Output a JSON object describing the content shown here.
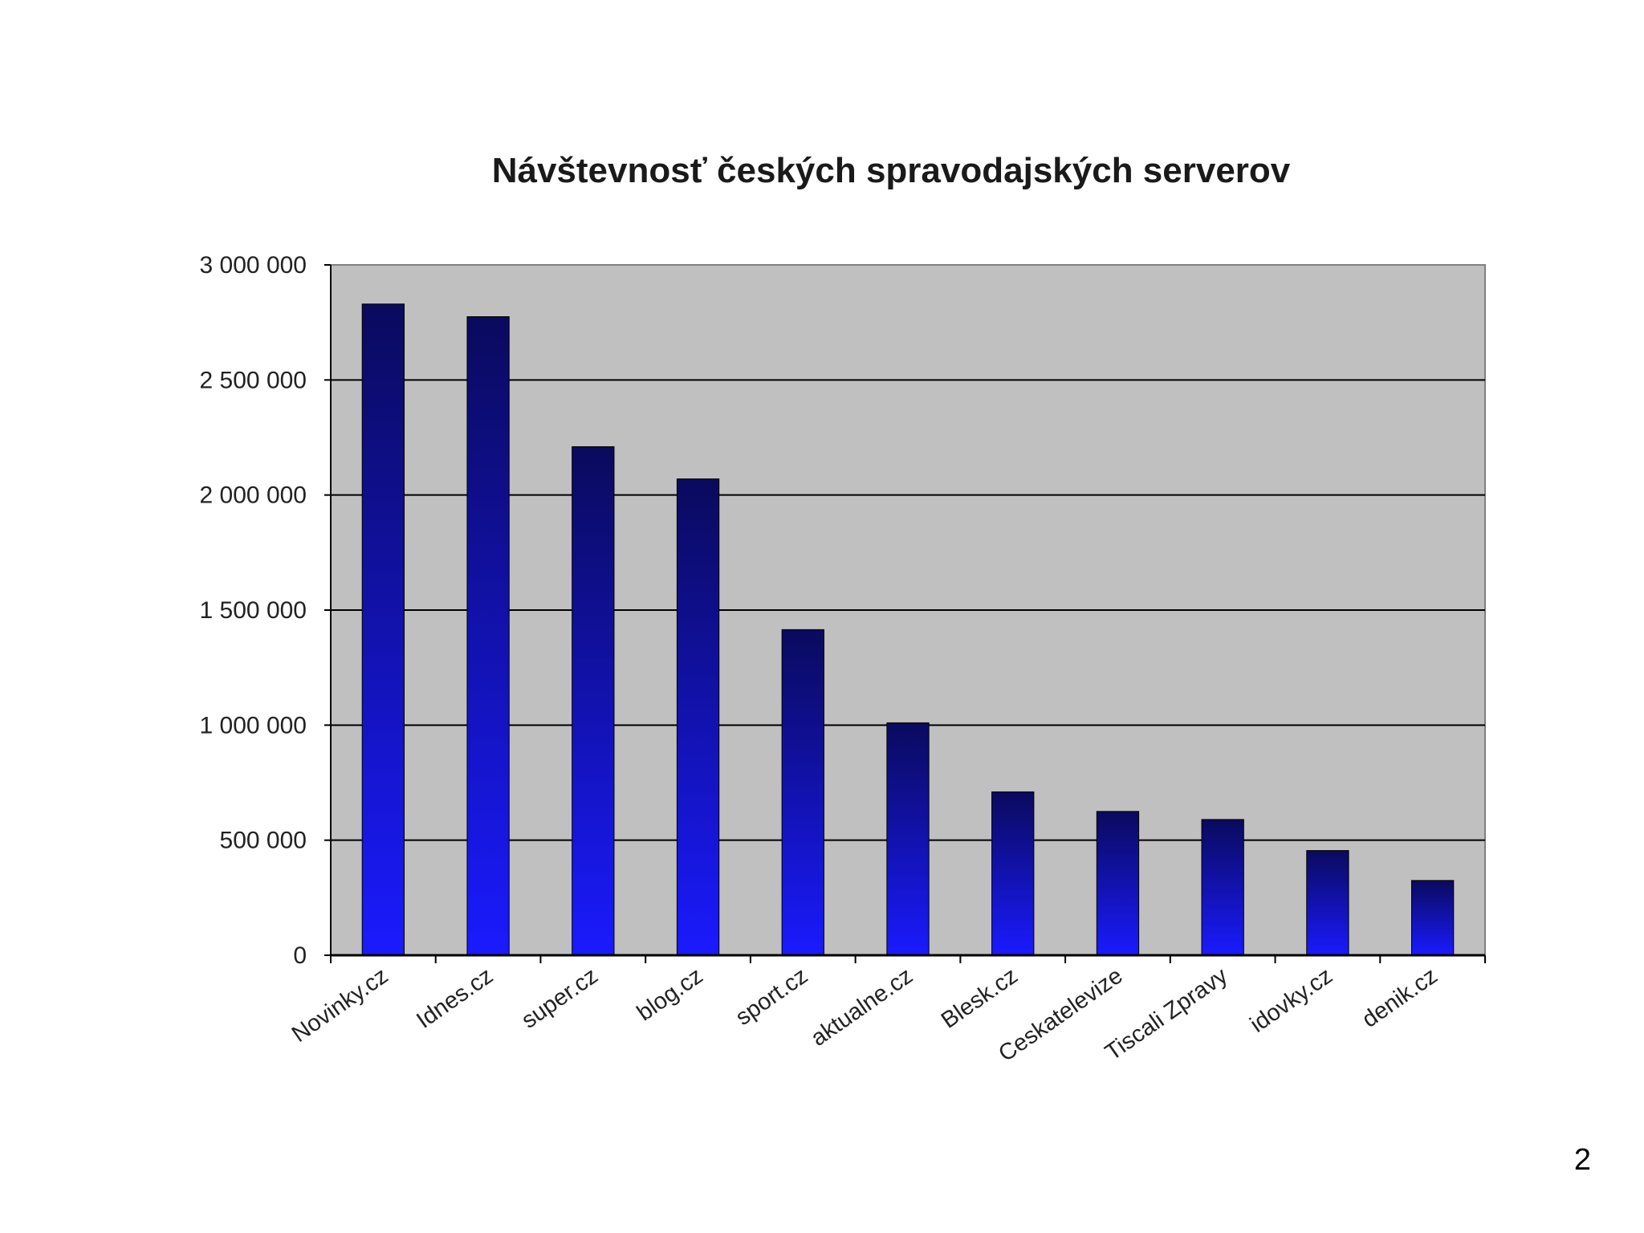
{
  "page_number": "2",
  "chart_data": {
    "type": "bar",
    "title": "Návštevnosť českých spravodajských serverov",
    "xlabel": "",
    "ylabel": "",
    "ylim": [
      0,
      3000000
    ],
    "yticks": [
      0,
      500000,
      1000000,
      1500000,
      2000000,
      2500000,
      3000000
    ],
    "ytick_labels": [
      "0",
      "500 000",
      "1 000 000",
      "1 500 000",
      "2 000 000",
      "2 500 000",
      "3 000 000"
    ],
    "grid": true,
    "legend": "none",
    "categories": [
      "Novinky.cz",
      "Idnes.cz",
      "super.cz",
      "blog.cz",
      "sport.cz",
      "aktualne.cz",
      "Blesk.cz",
      "Ceskatelevize",
      "Tiscali Zpravy",
      "idovky.cz",
      "denik.cz"
    ],
    "values": [
      2830000,
      2775000,
      2210000,
      2070000,
      1415000,
      1010000,
      710000,
      625000,
      590000,
      455000,
      325000
    ],
    "colors": {
      "plot_background": "#c0c0c0",
      "bar_top": "#0a0a5e",
      "bar_bottom": "#1a1aff",
      "gridline": "#000000",
      "axis": "#000000"
    }
  }
}
